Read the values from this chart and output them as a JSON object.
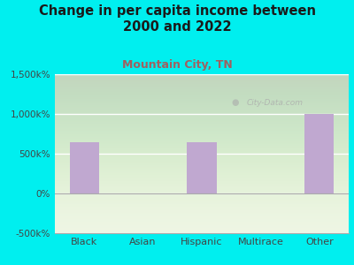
{
  "title": "Change in per capita income between\n2000 and 2022",
  "subtitle": "Mountain City, TN",
  "categories": [
    "Black",
    "Asian",
    "Hispanic",
    "Multirace",
    "Other"
  ],
  "values": [
    650,
    0,
    650,
    0,
    1000
  ],
  "bar_color": "#c0a8d0",
  "background_color": "#00efef",
  "plot_bg_color": "#edf5e1",
  "title_color": "#1a1a1a",
  "subtitle_color": "#a06060",
  "ylim": [
    -500,
    1500
  ],
  "yticks": [
    -500,
    0,
    500,
    1000,
    1500
  ],
  "ytick_labels": [
    "-500k%",
    "0%",
    "500k%",
    "1,000k%",
    "1,500k%"
  ],
  "watermark": "City-Data.com",
  "title_fontsize": 10.5,
  "subtitle_fontsize": 9,
  "tick_fontsize": 7.5,
  "xlabel_fontsize": 8
}
